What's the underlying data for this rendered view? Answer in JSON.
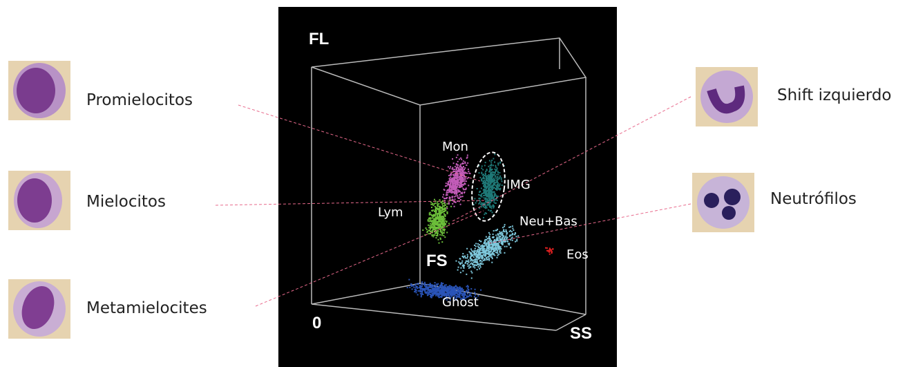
{
  "plot": {
    "axes": {
      "fl": "FL",
      "fs": "FS",
      "ss": "SS",
      "origin": "0"
    },
    "clusters": {
      "mon": "Mon",
      "img": "IMG",
      "lym": "Lym",
      "neu": "Neu+Bas",
      "eos": "Eos",
      "ghost": "Ghost"
    }
  },
  "cells": {
    "promielocitos": "Promielocitos",
    "mielocitos": "Mielocitos",
    "metamielocites": "Metamielocites",
    "shift": "Shift izquierdo",
    "neutrofilos": "Neutrófilos"
  }
}
